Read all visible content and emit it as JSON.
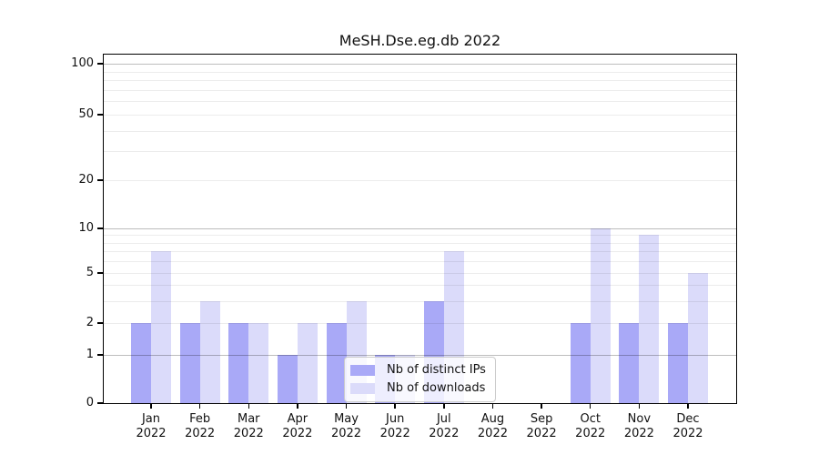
{
  "title": "MeSH.Dse.eg.db 2022",
  "legend": {
    "items": [
      {
        "label": "Nb of distinct IPs",
        "key": "distinct_ips"
      },
      {
        "label": "Nb of downloads",
        "key": "downloads"
      }
    ]
  },
  "colors": {
    "distinct_ips": "#a9a9f7",
    "downloads": "#dbdbfa",
    "axis": "#000000",
    "grid_major": "rgba(0,0,0,0.26)",
    "grid_minor": "rgba(0,0,0,0.075)",
    "legend_border": "#cccccc",
    "text": "#111111"
  },
  "chart_data": {
    "type": "bar",
    "title": "MeSH.Dse.eg.db 2022",
    "categories": [
      "Jan 2022",
      "Feb 2022",
      "Mar 2022",
      "Apr 2022",
      "May 2022",
      "Jun 2022",
      "Jul 2022",
      "Aug 2022",
      "Sep 2022",
      "Oct 2022",
      "Nov 2022",
      "Dec 2022"
    ],
    "category_months": [
      "Jan",
      "Feb",
      "Mar",
      "Apr",
      "May",
      "Jun",
      "Jul",
      "Aug",
      "Sep",
      "Oct",
      "Nov",
      "Dec"
    ],
    "category_year": "2022",
    "series": [
      {
        "name": "Nb of distinct IPs",
        "color_key": "distinct_ips",
        "values": [
          2,
          2,
          2,
          1,
          2,
          1,
          3,
          0,
          0,
          2,
          2,
          2
        ]
      },
      {
        "name": "Nb of downloads",
        "color_key": "downloads",
        "values": [
          7,
          3,
          2,
          2,
          3,
          1,
          7,
          0,
          0,
          10,
          9,
          5
        ]
      }
    ],
    "yticks": [
      0,
      1,
      2,
      5,
      10,
      20,
      50,
      100
    ],
    "yscale": "log-like with zero baseline",
    "ylim": [
      0,
      113
    ],
    "xlabel": "",
    "ylabel": "",
    "grid": "horizontal major+minor, drawn over bars",
    "legend_position": "lower center"
  }
}
